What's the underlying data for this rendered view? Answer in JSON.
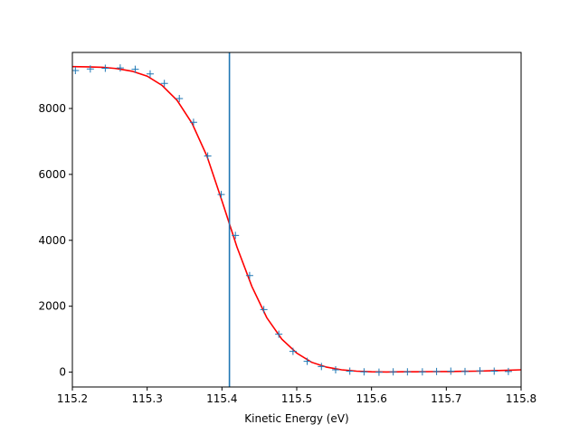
{
  "chart_data": {
    "type": "scatter",
    "title": "",
    "xlabel": "Kinetic Energy (eV)",
    "ylabel": "",
    "xlim": [
      115.2,
      115.8
    ],
    "ylim": [
      -450,
      9700
    ],
    "xticks": [
      "115.2",
      "115.3",
      "115.4",
      "115.5",
      "115.6",
      "115.7",
      "115.8"
    ],
    "yticks": [
      "0",
      "2000",
      "4000",
      "6000",
      "8000"
    ],
    "grid": false,
    "legend": "none",
    "vline_x": 115.41,
    "colors": {
      "data_markers": "#1f77b4",
      "fit_line": "#ff0000",
      "vline": "#1f77b4"
    },
    "series": [
      {
        "marker": "plus",
        "x": [
          115.204,
          115.224,
          115.244,
          115.264,
          115.284,
          115.304,
          115.323,
          115.343,
          115.362,
          115.381,
          115.399,
          115.418,
          115.437,
          115.456,
          115.476,
          115.495,
          115.514,
          115.533,
          115.552,
          115.571,
          115.59,
          115.61,
          115.629,
          115.648,
          115.668,
          115.687,
          115.706,
          115.725,
          115.745,
          115.764,
          115.783
        ],
        "y": [
          9150,
          9200,
          9220,
          9230,
          9190,
          9050,
          8760,
          8300,
          7580,
          6560,
          5390,
          4150,
          2930,
          1900,
          1150,
          630,
          330,
          170,
          70,
          30,
          10,
          0,
          10,
          10,
          10,
          20,
          30,
          20,
          40,
          30,
          20
        ]
      },
      {
        "marker": "line",
        "x": [
          115.2,
          115.22,
          115.24,
          115.26,
          115.28,
          115.3,
          115.32,
          115.34,
          115.36,
          115.38,
          115.4,
          115.42,
          115.44,
          115.46,
          115.48,
          115.5,
          115.52,
          115.54,
          115.56,
          115.58,
          115.6,
          115.62,
          115.64,
          115.66,
          115.68,
          115.7,
          115.72,
          115.74,
          115.76,
          115.78,
          115.8
        ],
        "y": [
          9270,
          9265,
          9250,
          9210,
          9130,
          8980,
          8700,
          8250,
          7550,
          6550,
          5200,
          3800,
          2600,
          1650,
          1000,
          580,
          300,
          150,
          70,
          30,
          10,
          5,
          10,
          10,
          15,
          20,
          25,
          30,
          40,
          55,
          70
        ]
      }
    ]
  }
}
